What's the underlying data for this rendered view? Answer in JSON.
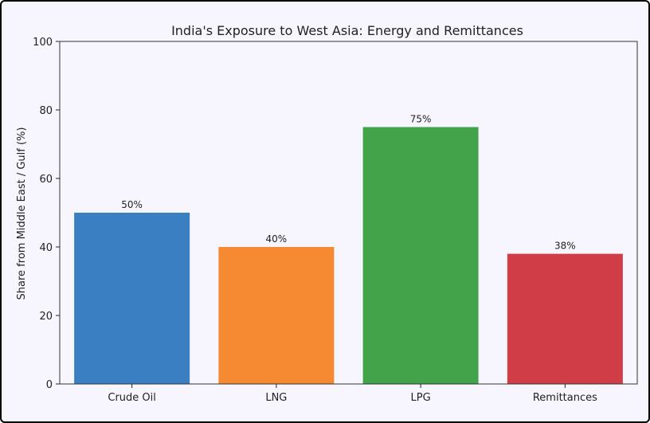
{
  "chart_data": {
    "type": "bar",
    "title": "India's Exposure to West Asia: Energy and Remittances",
    "xlabel": "",
    "ylabel": "Share from Middle East / Gulf (%)",
    "ylim": [
      0,
      100
    ],
    "yticks": [
      0,
      20,
      40,
      60,
      80,
      100
    ],
    "categories": [
      "Crude Oil",
      "LNG",
      "LPG",
      "Remittances"
    ],
    "values": [
      50,
      40,
      75,
      38
    ],
    "data_labels": [
      "50%",
      "40%",
      "75%",
      "38%"
    ],
    "colors": [
      "#3a7fc1",
      "#f58a33",
      "#42a34b",
      "#d13d47"
    ],
    "grid": false,
    "legend": "none"
  }
}
